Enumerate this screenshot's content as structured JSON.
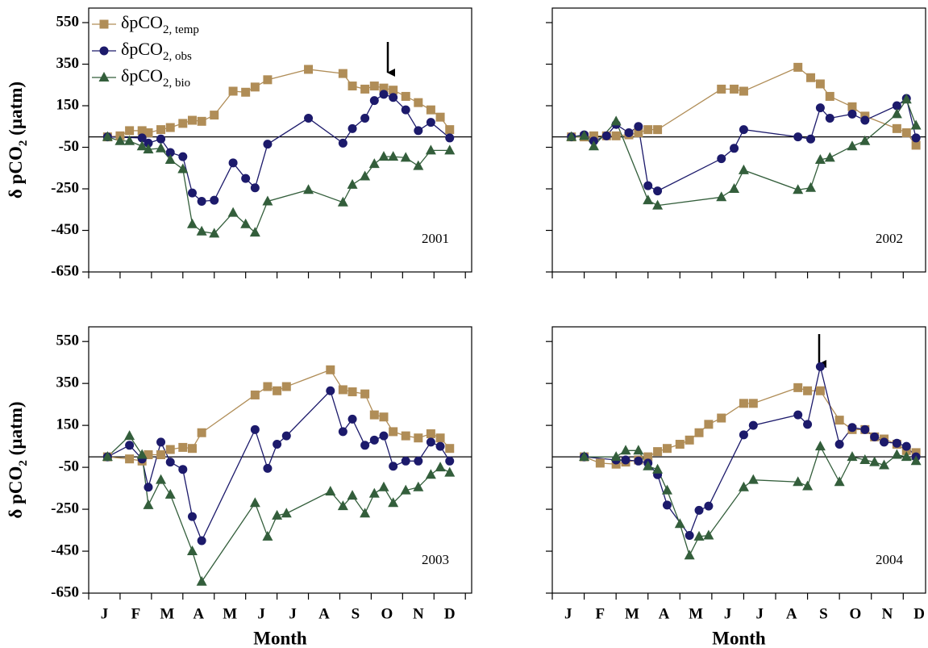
{
  "chart_data": [
    {
      "type": "line",
      "label": "2001",
      "xlim": [
        0,
        12.2
      ],
      "ylim": [
        -650,
        620
      ],
      "yticks": [
        550,
        350,
        150,
        -50,
        -250,
        -450,
        -650
      ],
      "ytick_labels": true,
      "xminorticks": [
        0,
        1,
        2,
        3,
        4,
        5,
        6,
        7,
        8,
        9,
        10,
        11,
        12
      ],
      "hline": 0,
      "legend": "upper left",
      "ylabel": [
        {
          "text": "δ pCO"
        },
        {
          "text": "2",
          "sub": true
        },
        {
          "text": " (µatm)"
        }
      ],
      "series": [
        {
          "name": [
            "δpCO",
            "2, temp"
          ],
          "color": "#b08d57",
          "marker": "square",
          "x": [
            0.6,
            1.0,
            1.3,
            1.7,
            1.9,
            2.3,
            2.6,
            3.0,
            3.3,
            3.6,
            4.0,
            4.6,
            5.0,
            5.3,
            5.7,
            7.0,
            8.1,
            8.4,
            8.8,
            9.1,
            9.4,
            9.7,
            10.1,
            10.5,
            10.9,
            11.2,
            11.5
          ],
          "values": [
            0,
            5,
            30,
            30,
            20,
            35,
            45,
            65,
            80,
            75,
            105,
            220,
            215,
            240,
            275,
            325,
            305,
            245,
            230,
            245,
            235,
            225,
            195,
            165,
            130,
            95,
            35
          ]
        },
        {
          "name": [
            "δpCO",
            "2, obs"
          ],
          "color": "#1c1a6b",
          "marker": "circle",
          "x": [
            0.6,
            1.7,
            1.9,
            2.3,
            2.6,
            3.0,
            3.3,
            3.6,
            4.0,
            4.6,
            5.0,
            5.3,
            5.7,
            7.0,
            8.1,
            8.4,
            8.8,
            9.1,
            9.4,
            9.7,
            10.1,
            10.5,
            10.9,
            11.5
          ],
          "values": [
            0,
            -5,
            -30,
            -10,
            -75,
            -95,
            -270,
            -310,
            -305,
            -125,
            -200,
            -245,
            -35,
            90,
            -30,
            40,
            90,
            175,
            205,
            190,
            130,
            30,
            70,
            -5
          ]
        },
        {
          "name": [
            "δpCO",
            "2, bio"
          ],
          "color": "#335e3b",
          "marker": "triangle",
          "x": [
            0.6,
            1.0,
            1.3,
            1.7,
            1.9,
            2.3,
            2.6,
            3.0,
            3.3,
            3.6,
            4.0,
            4.6,
            5.0,
            5.3,
            5.7,
            7.0,
            8.1,
            8.4,
            8.8,
            9.1,
            9.4,
            9.7,
            10.1,
            10.5,
            10.9,
            11.5
          ],
          "values": [
            0,
            -20,
            -20,
            -45,
            -60,
            -55,
            -110,
            -155,
            -420,
            -455,
            -465,
            -365,
            -420,
            -460,
            -310,
            -255,
            -315,
            -230,
            -190,
            -130,
            -95,
            -95,
            -100,
            -140,
            -65,
            -65
          ]
        }
      ]
    },
    {
      "type": "line",
      "label": "2002",
      "xlim": [
        0,
        11.7
      ],
      "ylim": [
        -650,
        620
      ],
      "yticks": [
        550,
        350,
        150,
        -50,
        -250,
        -450,
        -650
      ],
      "ytick_labels": false,
      "xminorticks": [
        0,
        1,
        2,
        3,
        4,
        5,
        6,
        7,
        8,
        9,
        10,
        11
      ],
      "hline": 0,
      "series": [
        {
          "color": "#b08d57",
          "marker": "square",
          "x": [
            0.6,
            1.0,
            1.3,
            1.7,
            2.0,
            2.4,
            2.7,
            3.0,
            3.3,
            5.3,
            5.7,
            6.0,
            7.7,
            8.1,
            8.4,
            8.7,
            9.4,
            9.8,
            10.8,
            11.1,
            11.4
          ],
          "values": [
            0,
            0,
            5,
            5,
            5,
            10,
            20,
            35,
            35,
            230,
            230,
            220,
            335,
            285,
            255,
            195,
            145,
            100,
            40,
            20,
            -40
          ]
        },
        {
          "color": "#1c1a6b",
          "marker": "circle",
          "x": [
            0.6,
            1.0,
            1.3,
            1.7,
            2.0,
            2.4,
            2.7,
            3.0,
            3.3,
            5.3,
            5.7,
            6.0,
            7.7,
            8.1,
            8.4,
            8.7,
            9.4,
            9.8,
            10.8,
            11.1,
            11.4
          ],
          "values": [
            0,
            10,
            -20,
            5,
            60,
            20,
            50,
            -235,
            -260,
            -105,
            -55,
            35,
            0,
            -10,
            140,
            90,
            110,
            80,
            150,
            185,
            -5
          ]
        },
        {
          "color": "#335e3b",
          "marker": "triangle",
          "x": [
            0.6,
            1.0,
            1.3,
            2.0,
            3.0,
            3.3,
            5.3,
            5.7,
            6.0,
            7.7,
            8.1,
            8.4,
            8.7,
            9.4,
            9.8,
            10.8,
            11.1,
            11.4
          ],
          "values": [
            0,
            5,
            -45,
            75,
            -305,
            -330,
            -290,
            -250,
            -160,
            -255,
            -245,
            -110,
            -100,
            -45,
            -20,
            110,
            180,
            55
          ]
        }
      ]
    },
    {
      "type": "line",
      "label": "2003",
      "xlim": [
        0,
        12.2
      ],
      "ylim": [
        -650,
        620
      ],
      "yticks": [
        550,
        350,
        150,
        -50,
        -250,
        -450,
        -650
      ],
      "ytick_labels": true,
      "xminorticks": [
        0,
        1,
        2,
        3,
        4,
        5,
        6,
        7,
        8,
        9,
        10,
        11,
        12
      ],
      "hline": 0,
      "xticks": [
        {
          "value": 0.5,
          "label": "J"
        },
        {
          "value": 1.5,
          "label": "F"
        },
        {
          "value": 2.5,
          "label": "M"
        },
        {
          "value": 3.5,
          "label": "A"
        },
        {
          "value": 4.5,
          "label": "M"
        },
        {
          "value": 5.5,
          "label": "J"
        },
        {
          "value": 6.5,
          "label": "J"
        },
        {
          "value": 7.5,
          "label": "A"
        },
        {
          "value": 8.5,
          "label": "S"
        },
        {
          "value": 9.5,
          "label": "O"
        },
        {
          "value": 10.5,
          "label": "N"
        },
        {
          "value": 11.5,
          "label": "D"
        }
      ],
      "xlabel": "Month",
      "ylabel": [
        {
          "text": "δ pCO"
        },
        {
          "text": "2",
          "sub": true
        },
        {
          "text": " (µatm)"
        }
      ],
      "series": [
        {
          "color": "#b08d57",
          "marker": "square",
          "x": [
            0.6,
            1.3,
            1.7,
            1.9,
            2.3,
            2.6,
            3.0,
            3.3,
            3.6,
            5.3,
            5.7,
            6.0,
            6.3,
            7.7,
            8.1,
            8.4,
            8.8,
            9.1,
            9.4,
            9.7,
            10.1,
            10.5,
            10.9,
            11.2,
            11.5
          ],
          "values": [
            0,
            -10,
            -20,
            10,
            10,
            35,
            45,
            40,
            115,
            295,
            335,
            315,
            335,
            415,
            320,
            310,
            300,
            200,
            190,
            120,
            100,
            90,
            110,
            90,
            40
          ]
        },
        {
          "color": "#1c1a6b",
          "marker": "circle",
          "x": [
            0.6,
            1.3,
            1.7,
            1.9,
            2.3,
            2.6,
            3.0,
            3.3,
            3.6,
            5.3,
            5.7,
            6.0,
            6.3,
            7.7,
            8.1,
            8.4,
            8.8,
            9.1,
            9.4,
            9.7,
            10.1,
            10.5,
            10.9,
            11.2,
            11.5
          ],
          "values": [
            0,
            55,
            -10,
            -145,
            70,
            -25,
            -60,
            -285,
            -400,
            130,
            -55,
            60,
            100,
            315,
            120,
            180,
            55,
            80,
            100,
            -45,
            -20,
            -20,
            70,
            50,
            -20
          ]
        },
        {
          "color": "#335e3b",
          "marker": "triangle",
          "x": [
            0.6,
            1.3,
            1.7,
            1.9,
            2.3,
            2.6,
            3.3,
            3.6,
            5.3,
            5.7,
            6.0,
            6.3,
            7.7,
            8.1,
            8.4,
            8.8,
            9.1,
            9.4,
            9.7,
            10.1,
            10.5,
            10.9,
            11.2,
            11.5
          ],
          "values": [
            0,
            100,
            10,
            -230,
            -110,
            -180,
            -450,
            -595,
            -220,
            -380,
            -280,
            -270,
            -165,
            -235,
            -185,
            -270,
            -175,
            -145,
            -220,
            -160,
            -145,
            -85,
            -50,
            -75
          ]
        }
      ]
    },
    {
      "type": "line",
      "label": "2004",
      "xlim": [
        0,
        11.7
      ],
      "ylim": [
        -650,
        620
      ],
      "yticks": [
        550,
        350,
        150,
        -50,
        -250,
        -450,
        -650
      ],
      "ytick_labels": false,
      "xminorticks": [
        0,
        1,
        2,
        3,
        4,
        5,
        6,
        7,
        8,
        9,
        10,
        11
      ],
      "hline": 0,
      "xticks": [
        {
          "value": 0.5,
          "label": "J"
        },
        {
          "value": 1.5,
          "label": "F"
        },
        {
          "value": 2.5,
          "label": "M"
        },
        {
          "value": 3.5,
          "label": "A"
        },
        {
          "value": 4.5,
          "label": "M"
        },
        {
          "value": 5.5,
          "label": "J"
        },
        {
          "value": 6.5,
          "label": "J"
        },
        {
          "value": 7.5,
          "label": "A"
        },
        {
          "value": 8.5,
          "label": "S"
        },
        {
          "value": 9.5,
          "label": "O"
        },
        {
          "value": 10.5,
          "label": "N"
        },
        {
          "value": 11.5,
          "label": "D"
        }
      ],
      "xlabel": "Month",
      "series": [
        {
          "color": "#b08d57",
          "marker": "square",
          "x": [
            1.0,
            1.5,
            2.0,
            2.3,
            2.7,
            3.0,
            3.3,
            3.6,
            4.0,
            4.3,
            4.6,
            4.9,
            5.3,
            6.0,
            6.3,
            7.7,
            8.0,
            8.4,
            9.0,
            9.4,
            9.8,
            10.1,
            10.4,
            10.8,
            11.1,
            11.4
          ],
          "values": [
            0,
            -30,
            -35,
            -25,
            -15,
            0,
            25,
            40,
            60,
            80,
            115,
            155,
            185,
            255,
            255,
            330,
            315,
            315,
            175,
            130,
            130,
            95,
            85,
            60,
            30,
            20
          ]
        },
        {
          "color": "#1c1a6b",
          "marker": "circle",
          "x": [
            1.0,
            2.0,
            2.3,
            2.7,
            3.0,
            3.3,
            3.6,
            4.3,
            4.6,
            4.9,
            6.0,
            6.3,
            7.7,
            8.0,
            8.4,
            9.0,
            9.4,
            9.8,
            10.1,
            10.4,
            10.8,
            11.1,
            11.4
          ],
          "values": [
            0,
            -15,
            -15,
            -20,
            -30,
            -85,
            -230,
            -375,
            -255,
            -235,
            105,
            150,
            200,
            155,
            430,
            60,
            140,
            130,
            95,
            70,
            65,
            50,
            0
          ]
        },
        {
          "color": "#335e3b",
          "marker": "triangle",
          "x": [
            1.0,
            2.0,
            2.3,
            2.7,
            3.0,
            3.3,
            3.6,
            4.0,
            4.3,
            4.6,
            4.9,
            6.0,
            6.3,
            7.7,
            8.0,
            8.4,
            9.0,
            9.4,
            9.8,
            10.1,
            10.4,
            10.8,
            11.1,
            11.4
          ],
          "values": [
            0,
            0,
            30,
            30,
            -45,
            -60,
            -160,
            -320,
            -470,
            -380,
            -375,
            -145,
            -110,
            -120,
            -140,
            50,
            -120,
            0,
            -15,
            -25,
            -40,
            10,
            0,
            -20
          ]
        }
      ]
    }
  ]
}
